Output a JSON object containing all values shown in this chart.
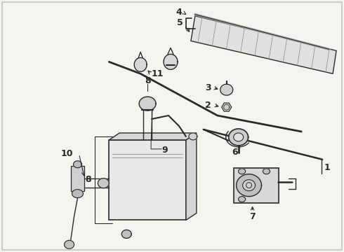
{
  "bg_color": "#f5f5f0",
  "line_color": "#2a2a2a",
  "fig_width": 4.9,
  "fig_height": 3.6,
  "dpi": 100,
  "label_fs": 9,
  "border_color": "#cccccc"
}
